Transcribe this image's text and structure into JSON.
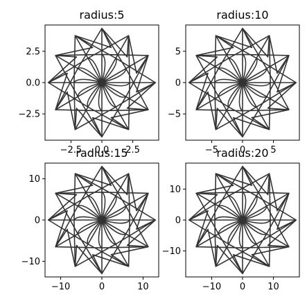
{
  "figure": {
    "line_color": "#333333",
    "axes_color": "#000000",
    "background": "#ffffff"
  },
  "chart_data": [
    {
      "type": "line",
      "title": "radius:5",
      "xlabel": "",
      "ylabel": "",
      "radius": 5,
      "xlim": [
        -4.6,
        4.6
      ],
      "ylim": [
        -4.6,
        4.6
      ],
      "xticks": [
        -2.5,
        0.0,
        2.5
      ],
      "xtick_labels": [
        "−2.5",
        "0.0",
        "2.5"
      ],
      "yticks": [
        -2.5,
        0.0,
        2.5
      ],
      "ytick_labels": [
        "−2.5",
        "0.0",
        "2.5"
      ],
      "grid": false,
      "star_points": 12,
      "outer_radius_fraction": 0.866,
      "inner_radius_fraction": 0.45
    },
    {
      "type": "line",
      "title": "radius:10",
      "xlabel": "",
      "ylabel": "",
      "radius": 10,
      "xlim": [
        -9.2,
        9.2
      ],
      "ylim": [
        -9.2,
        9.2
      ],
      "xticks": [
        -5,
        0,
        5
      ],
      "xtick_labels": [
        "−5",
        "0",
        "5"
      ],
      "yticks": [
        -5,
        0,
        5
      ],
      "ytick_labels": [
        "−5",
        "0",
        "5"
      ],
      "grid": false,
      "star_points": 12,
      "outer_radius_fraction": 0.866,
      "inner_radius_fraction": 0.45
    },
    {
      "type": "line",
      "title": "radius:15",
      "xlabel": "",
      "ylabel": "",
      "radius": 15,
      "xlim": [
        -13.8,
        13.8
      ],
      "ylim": [
        -13.8,
        13.8
      ],
      "xticks": [
        -10,
        0,
        10
      ],
      "xtick_labels": [
        "−10",
        "0",
        "10"
      ],
      "yticks": [
        -10,
        0,
        10
      ],
      "ytick_labels": [
        "−10",
        "0",
        "10"
      ],
      "grid": false,
      "star_points": 12,
      "outer_radius_fraction": 0.866,
      "inner_radius_fraction": 0.45
    },
    {
      "type": "line",
      "title": "radius:20",
      "xlabel": "",
      "ylabel": "",
      "radius": 20,
      "xlim": [
        -18.4,
        18.4
      ],
      "ylim": [
        -18.4,
        18.4
      ],
      "xticks": [
        -10,
        0,
        10
      ],
      "xtick_labels": [
        "−10",
        "0",
        "10"
      ],
      "yticks": [
        -10,
        0,
        10
      ],
      "ytick_labels": [
        "−10",
        "0",
        "10"
      ],
      "grid": false,
      "star_points": 12,
      "outer_radius_fraction": 0.866,
      "inner_radius_fraction": 0.45
    }
  ]
}
